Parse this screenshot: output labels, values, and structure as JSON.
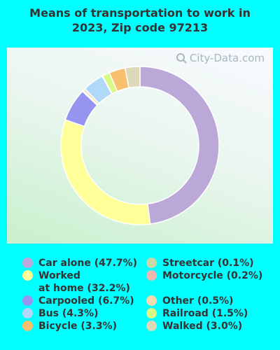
{
  "chart_data": {
    "type": "pie",
    "title_lines": [
      "Means of transportation to work in",
      "2023, Zip code 97213"
    ],
    "watermark": "City-Data.com",
    "slices": [
      {
        "label": "Car alone (47.7%)",
        "value": 47.7,
        "color": "#bba8d8"
      },
      {
        "label": "Worked\nat home (32.2%)",
        "value": 32.2,
        "color": "#ffff99"
      },
      {
        "label": "Carpooled (6.7%)",
        "value": 6.7,
        "color": "#9595f0"
      },
      {
        "label": "Motorcycle (0.2%)",
        "value": 0.2,
        "color": "#f0b8b0"
      },
      {
        "label": "Other (0.5%)",
        "value": 0.5,
        "color": "#f8dab0"
      },
      {
        "label": "Bus (4.3%)",
        "value": 4.3,
        "color": "#b0d8f8"
      },
      {
        "label": "Streetcar (0.1%)",
        "value": 0.1,
        "color": "#c8d8a8"
      },
      {
        "label": "Railroad (1.5%)",
        "value": 1.5,
        "color": "#d8f888"
      },
      {
        "label": "Bicycle (3.3%)",
        "value": 3.3,
        "color": "#f8c070"
      },
      {
        "label": "Walked (3.0%)",
        "value": 3.0,
        "color": "#dcd8b8"
      }
    ],
    "legend_left": [
      0,
      1,
      2,
      5,
      8
    ],
    "legend_right": [
      6,
      3,
      4,
      7,
      9
    ]
  }
}
